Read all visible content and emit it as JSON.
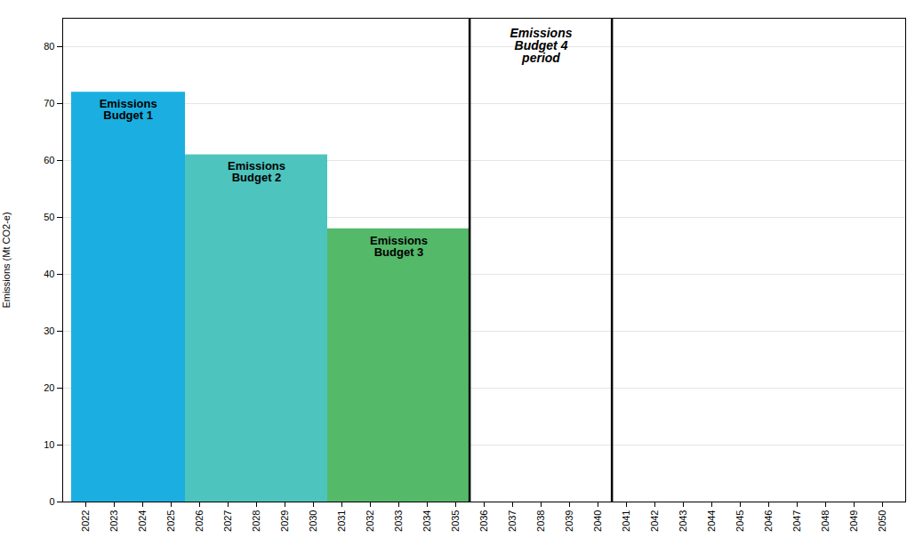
{
  "chart_data": {
    "type": "bar",
    "categories": [
      2022,
      2023,
      2024,
      2025,
      2026,
      2027,
      2028,
      2029,
      2030,
      2031,
      2032,
      2033,
      2034,
      2035,
      2036,
      2037,
      2038,
      2039,
      2040,
      2041,
      2042,
      2043,
      2044,
      2045,
      2046,
      2047,
      2048,
      2049,
      2050
    ],
    "ylabel": "Emissions (Mt CO2-e)",
    "ylim": [
      0,
      85
    ],
    "yticks": [
      0,
      10,
      20,
      30,
      40,
      50,
      60,
      70,
      80
    ],
    "grid": true,
    "bars": [
      {
        "label": "Emissions\nBudget 1",
        "x_start": 2022,
        "x_end": 2026,
        "value": 72,
        "color": "#1aafe0"
      },
      {
        "label": "Emissions\nBudget 2",
        "x_start": 2026,
        "x_end": 2031,
        "value": 61,
        "color": "#4dc4be"
      },
      {
        "label": "Emissions\nBudget 3",
        "x_start": 2031,
        "x_end": 2036,
        "value": 48,
        "color": "#55b96a"
      }
    ],
    "vlines": [
      {
        "x": 2036,
        "color": "black"
      },
      {
        "x": 2041,
        "color": "black"
      }
    ],
    "annotation": {
      "text": "Emissions\nBudget 4\nperiod"
    }
  }
}
